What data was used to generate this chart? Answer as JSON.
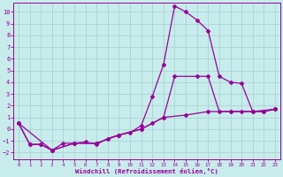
{
  "xlabel": "Windchill (Refroidissement éolien,°C)",
  "bg_color": "#c8ecec",
  "grid_color": "#aad4d4",
  "line_color": "#990099",
  "xlim": [
    -0.5,
    23.5
  ],
  "ylim": [
    -2.6,
    10.8
  ],
  "xticks": [
    0,
    1,
    2,
    3,
    4,
    5,
    6,
    7,
    8,
    9,
    10,
    11,
    12,
    13,
    14,
    15,
    16,
    17,
    18,
    19,
    20,
    21,
    22,
    23
  ],
  "yticks": [
    -2,
    -1,
    0,
    1,
    2,
    3,
    4,
    5,
    6,
    7,
    8,
    9,
    10
  ],
  "line1_x": [
    0,
    1,
    2,
    3,
    4,
    5,
    6,
    7,
    8,
    9,
    10,
    11,
    12,
    13,
    14,
    15,
    16,
    17,
    18,
    19,
    20,
    21,
    22,
    23
  ],
  "line1_y": [
    0.5,
    -1.3,
    -1.3,
    -1.8,
    -1.2,
    -1.2,
    -1.1,
    -1.3,
    -0.8,
    -0.5,
    -0.3,
    0.3,
    2.8,
    5.5,
    10.5,
    10.0,
    9.3,
    8.4,
    4.5,
    4.0,
    3.9,
    1.5,
    1.5,
    1.7
  ],
  "line2_x": [
    0,
    1,
    2,
    3,
    5,
    7,
    9,
    11,
    12,
    13,
    14,
    16,
    17,
    18,
    19,
    20,
    21,
    22,
    23
  ],
  "line2_y": [
    0.5,
    -1.3,
    -1.3,
    -1.8,
    -1.2,
    -1.2,
    -0.5,
    0.0,
    0.5,
    1.0,
    4.5,
    4.5,
    4.5,
    1.5,
    1.5,
    1.5,
    1.5,
    1.5,
    1.7
  ],
  "line3_x": [
    0,
    3,
    5,
    7,
    9,
    11,
    13,
    15,
    17,
    19,
    21,
    23
  ],
  "line3_y": [
    0.5,
    -1.8,
    -1.2,
    -1.2,
    -0.5,
    0.0,
    1.0,
    1.2,
    1.5,
    1.5,
    1.5,
    1.7
  ]
}
